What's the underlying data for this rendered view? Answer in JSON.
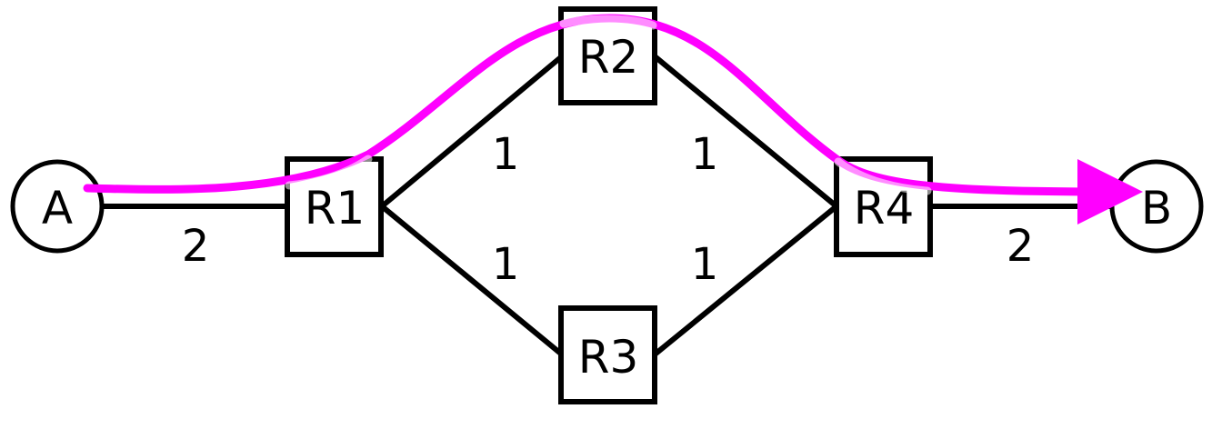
{
  "nodes": {
    "a": "A",
    "b": "B",
    "r1": "R1",
    "r2": "R2",
    "r3": "R3",
    "r4": "R4"
  },
  "costs": {
    "a_r1": "2",
    "r1_r2": "1",
    "r2_r4": "1",
    "r1_r3": "1",
    "r3_r4": "1",
    "r4_b": "2"
  },
  "colors": {
    "path": "#ff00ff",
    "path_faded": "#ff80ff",
    "line": "#000000"
  }
}
